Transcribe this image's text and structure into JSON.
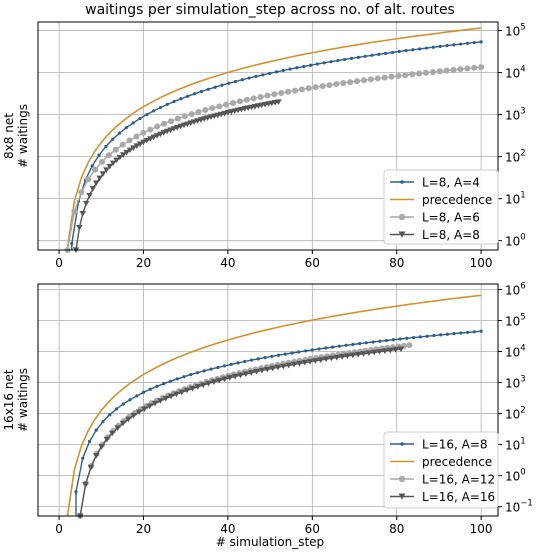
{
  "figure": {
    "title": "waitings per simulation_step across no. of alt. routes",
    "xlabel": "# simulation_step"
  },
  "chart_data": [
    {
      "type": "line",
      "ylabel_line1": "8x8 net",
      "ylabel_line2": "# waitings",
      "yscale": "log",
      "ylim": [
        0.6,
        160000
      ],
      "xlim": [
        -5,
        104
      ],
      "x_ticks": [
        0,
        20,
        40,
        60,
        80,
        100
      ],
      "y_ticks": [
        {
          "value": 1,
          "label": "10",
          "exp": "0"
        },
        {
          "value": 10,
          "label": "10",
          "exp": "1"
        },
        {
          "value": 100,
          "label": "10",
          "exp": "2"
        },
        {
          "value": 1000,
          "label": "10",
          "exp": "3"
        },
        {
          "value": 10000,
          "label": "10",
          "exp": "4"
        },
        {
          "value": 100000,
          "label": "10",
          "exp": "5"
        }
      ],
      "grid": true,
      "legend_position": "lower right",
      "series": [
        {
          "name": "L=8, A=4",
          "color": "#2e5f8a",
          "marker": "dot",
          "x_start": 3,
          "x_end": 100,
          "y_start": 0.85,
          "y_end": 54000
        },
        {
          "name": "precedence",
          "color": "#d4912c",
          "marker": "none",
          "x_start": 2,
          "x_end": 100,
          "y_start": 0.7,
          "y_end": 115000
        },
        {
          "name": "L=8, A=6",
          "color": "#a9a9a9",
          "marker": "circle",
          "x_start": 2,
          "x_end": 100,
          "y_start": 0.6,
          "y_end": 13500
        },
        {
          "name": "L=8, A=8",
          "color": "#555555",
          "marker": "triangle-down",
          "x_start": 4,
          "x_end": 52,
          "y_start": 0.6,
          "y_end": 2000
        }
      ]
    },
    {
      "type": "line",
      "ylabel_line1": "16x16 net",
      "ylabel_line2": "# waitings",
      "yscale": "log",
      "ylim": [
        0.05,
        1500000
      ],
      "xlim": [
        -5,
        104
      ],
      "x_ticks": [
        0,
        20,
        40,
        60,
        80,
        100
      ],
      "y_ticks": [
        {
          "value": 0.1,
          "label": "10",
          "exp": "−1"
        },
        {
          "value": 1,
          "label": "10",
          "exp": "0"
        },
        {
          "value": 10,
          "label": "10",
          "exp": "1"
        },
        {
          "value": 100,
          "label": "10",
          "exp": "2"
        },
        {
          "value": 1000,
          "label": "10",
          "exp": "3"
        },
        {
          "value": 10000,
          "label": "10",
          "exp": "4"
        },
        {
          "value": 100000,
          "label": "10",
          "exp": "5"
        },
        {
          "value": 1000000,
          "label": "10",
          "exp": "6"
        }
      ],
      "grid": true,
      "legend_position": "lower right",
      "series": [
        {
          "name": "L=16, A=8",
          "color": "#2e5f8a",
          "marker": "dot",
          "x_start": 4,
          "x_end": 100,
          "y_start": 0.3,
          "y_end": 45000
        },
        {
          "name": "precedence",
          "color": "#d4912c",
          "marker": "none",
          "x_start": 2,
          "x_end": 100,
          "y_start": 0.05,
          "y_end": 650000
        },
        {
          "name": "L=16, A=12",
          "color": "#a9a9a9",
          "marker": "circle",
          "x_start": 5,
          "x_end": 83,
          "y_start": 0.05,
          "y_end": 16000
        },
        {
          "name": "L=16, A=16",
          "color": "#555555",
          "marker": "triangle-down",
          "x_start": 5,
          "x_end": 81,
          "y_start": 0.05,
          "y_end": 12000
        }
      ]
    }
  ]
}
